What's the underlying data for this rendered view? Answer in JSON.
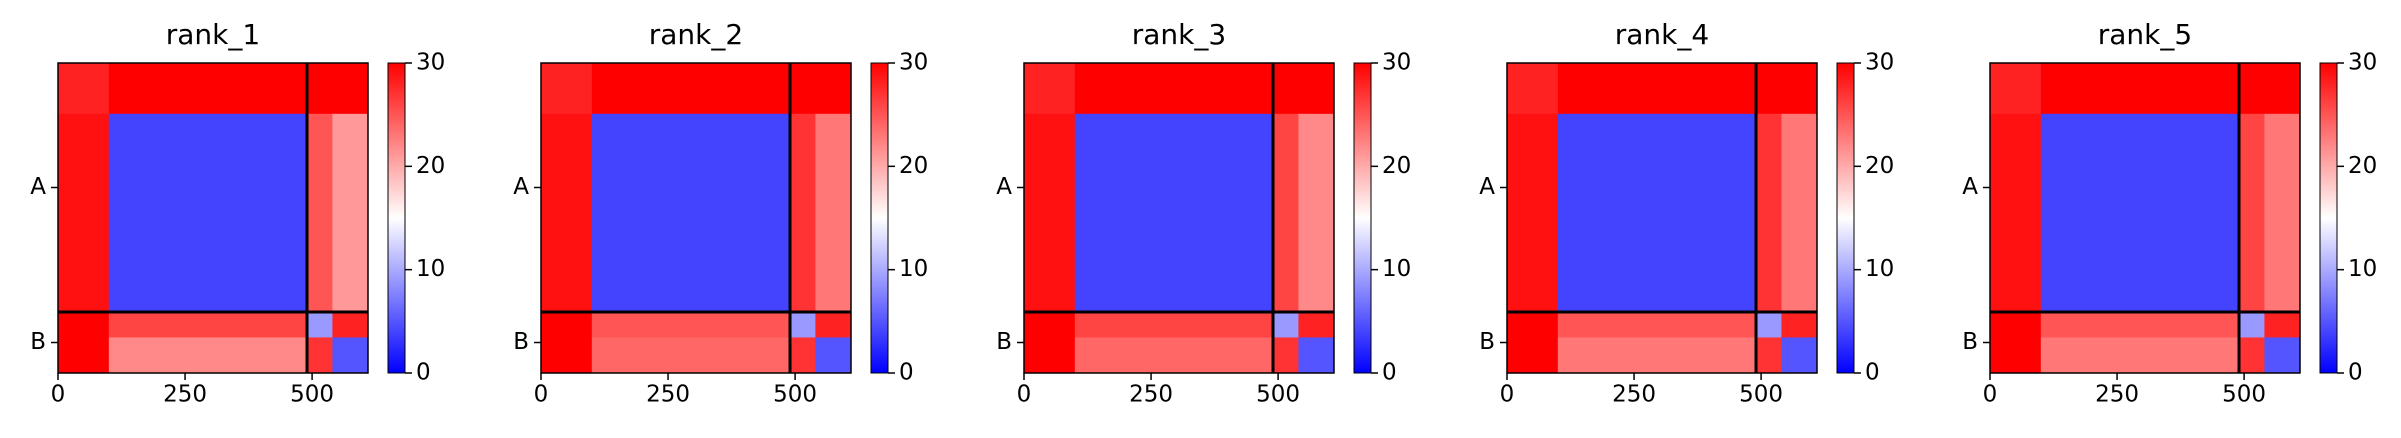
{
  "chart_data": [
    {
      "type": "heatmap",
      "title": "rank_1",
      "colormap": "bwr",
      "x": [
        0,
        100,
        490,
        540,
        610
      ],
      "values": [
        [
          28,
          30,
          30,
          30
        ],
        [
          29,
          4,
          25,
          21
        ],
        [
          30,
          26,
          9,
          28
        ],
        [
          30,
          22,
          27,
          5
        ]
      ],
      "xlim": [
        0,
        610
      ],
      "ylim": [
        610,
        0
      ],
      "xticks": [
        0,
        250,
        500
      ],
      "yticks": [
        {
          "value": 245,
          "label": "A"
        },
        {
          "value": 550,
          "label": "B"
        }
      ],
      "chain_boundaries": [
        490
      ],
      "clim": [
        0,
        30
      ],
      "cticks": [
        0,
        10,
        20,
        30
      ]
    },
    {
      "type": "heatmap",
      "title": "rank_2",
      "colormap": "bwr",
      "x": [
        0,
        100,
        490,
        540,
        610
      ],
      "values": [
        [
          28,
          30,
          30,
          30
        ],
        [
          29,
          4,
          27,
          23
        ],
        [
          30,
          25,
          9,
          28
        ],
        [
          30,
          24,
          27,
          5
        ]
      ],
      "xlim": [
        0,
        610
      ],
      "ylim": [
        610,
        0
      ],
      "xticks": [
        0,
        250,
        500
      ],
      "yticks": [
        {
          "value": 245,
          "label": "A"
        },
        {
          "value": 550,
          "label": "B"
        }
      ],
      "chain_boundaries": [
        490
      ],
      "clim": [
        0,
        30
      ],
      "cticks": [
        0,
        10,
        20,
        30
      ]
    },
    {
      "type": "heatmap",
      "title": "rank_3",
      "colormap": "bwr",
      "x": [
        0,
        100,
        490,
        540,
        610
      ],
      "values": [
        [
          28,
          30,
          30,
          30
        ],
        [
          29,
          4,
          26,
          22
        ],
        [
          30,
          26,
          9,
          28
        ],
        [
          30,
          24,
          27,
          5
        ]
      ],
      "xlim": [
        0,
        610
      ],
      "ylim": [
        610,
        0
      ],
      "xticks": [
        0,
        250,
        500
      ],
      "yticks": [
        {
          "value": 245,
          "label": "A"
        },
        {
          "value": 550,
          "label": "B"
        }
      ],
      "chain_boundaries": [
        490
      ],
      "clim": [
        0,
        30
      ],
      "cticks": [
        0,
        10,
        20,
        30
      ]
    },
    {
      "type": "heatmap",
      "title": "rank_4",
      "colormap": "bwr",
      "x": [
        0,
        100,
        490,
        540,
        610
      ],
      "values": [
        [
          28,
          30,
          30,
          30
        ],
        [
          29,
          4,
          27,
          23
        ],
        [
          30,
          25,
          9,
          28
        ],
        [
          30,
          23,
          27,
          5
        ]
      ],
      "xlim": [
        0,
        610
      ],
      "ylim": [
        610,
        0
      ],
      "xticks": [
        0,
        250,
        500
      ],
      "yticks": [
        {
          "value": 245,
          "label": "A"
        },
        {
          "value": 550,
          "label": "B"
        }
      ],
      "chain_boundaries": [
        490
      ],
      "clim": [
        0,
        30
      ],
      "cticks": [
        0,
        10,
        20,
        30
      ]
    },
    {
      "type": "heatmap",
      "title": "rank_5",
      "colormap": "bwr",
      "x": [
        0,
        100,
        490,
        540,
        610
      ],
      "values": [
        [
          28,
          30,
          30,
          30
        ],
        [
          29,
          4,
          26,
          23
        ],
        [
          30,
          25,
          9,
          28
        ],
        [
          30,
          23,
          27,
          5
        ]
      ],
      "xlim": [
        0,
        610
      ],
      "ylim": [
        610,
        0
      ],
      "xticks": [
        0,
        250,
        500
      ],
      "yticks": [
        {
          "value": 245,
          "label": "A"
        },
        {
          "value": 550,
          "label": "B"
        }
      ],
      "chain_boundaries": [
        490
      ],
      "clim": [
        0,
        30
      ],
      "cticks": [
        0,
        10,
        20,
        30
      ]
    }
  ]
}
